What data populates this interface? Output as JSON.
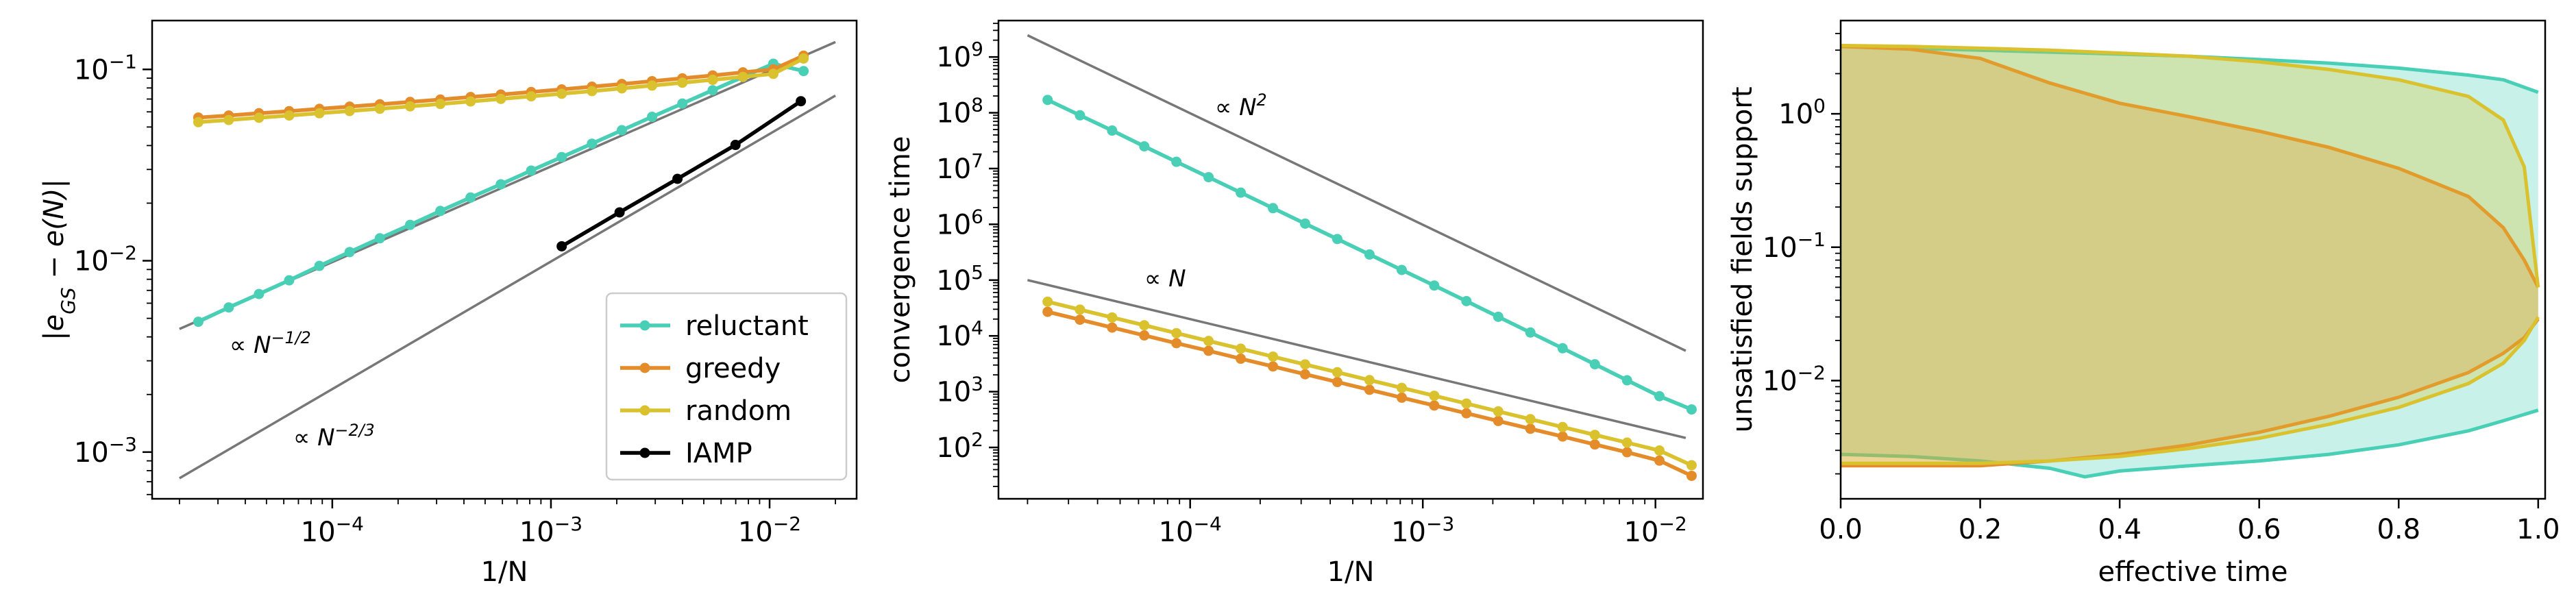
{
  "colors": {
    "reluctant": "#48cfb6",
    "greedy": "#e48c2a",
    "random": "#d9c22e",
    "iamp": "#000000",
    "ref": "#777777"
  },
  "chart_data": [
    {
      "type": "line",
      "xscale": "log",
      "yscale": "log",
      "xlabel": "1/N",
      "ylabel": "|e_GS − e(N)|",
      "xlim": [
        1.5e-05,
        0.025
      ],
      "ylim": [
        0.00057,
        0.18
      ],
      "xticks": [
        {
          "v": 0.0001,
          "b": "10",
          "e": "−4"
        },
        {
          "v": 0.001,
          "b": "10",
          "e": "−3"
        },
        {
          "v": 0.01,
          "b": "10",
          "e": "−2"
        }
      ],
      "yticks": [
        {
          "v": 0.001,
          "b": "10",
          "e": "−3"
        },
        {
          "v": 0.01,
          "b": "10",
          "e": "−2"
        },
        {
          "v": 0.1,
          "b": "10",
          "e": "−1"
        }
      ],
      "legend": {
        "placement": "lower right",
        "entries": [
          "reluctant",
          "greedy",
          "random",
          "IAMP"
        ]
      },
      "series": [
        {
          "name": "reluctant",
          "color_key": "reluctant",
          "x": [
            2.44e-05,
            3.36e-05,
            4.62e-05,
            6.35e-05,
            8.73e-05,
            0.00012,
            0.000165,
            0.000227,
            0.000312,
            0.000429,
            0.00059,
            0.000812,
            0.00112,
            0.00154,
            0.00211,
            0.0029,
            0.00399,
            0.00549,
            0.00755,
            0.0104,
            0.0143
          ],
          "y": [
            0.0048,
            0.0057,
            0.0067,
            0.0079,
            0.0094,
            0.0111,
            0.0131,
            0.0154,
            0.0182,
            0.0214,
            0.0251,
            0.0296,
            0.0348,
            0.0409,
            0.0481,
            0.0565,
            0.0663,
            0.0778,
            0.0913,
            0.1071,
            0.098
          ]
        },
        {
          "name": "greedy",
          "color_key": "greedy",
          "x": [
            2.44e-05,
            3.36e-05,
            4.62e-05,
            6.35e-05,
            8.73e-05,
            0.00012,
            0.000165,
            0.000227,
            0.000312,
            0.000429,
            0.00059,
            0.000812,
            0.00112,
            0.00154,
            0.00211,
            0.0029,
            0.00399,
            0.00549,
            0.00755,
            0.0104,
            0.0143
          ],
          "y": [
            0.056,
            0.0574,
            0.059,
            0.0605,
            0.0622,
            0.0639,
            0.0657,
            0.0676,
            0.0696,
            0.0717,
            0.0739,
            0.0762,
            0.0786,
            0.0812,
            0.0839,
            0.0868,
            0.0898,
            0.093,
            0.0965,
            0.1001,
            0.118
          ]
        },
        {
          "name": "random",
          "color_key": "random",
          "x": [
            2.44e-05,
            3.36e-05,
            4.62e-05,
            6.35e-05,
            8.73e-05,
            0.00012,
            0.000165,
            0.000227,
            0.000312,
            0.000429,
            0.00059,
            0.000812,
            0.00112,
            0.00154,
            0.00211,
            0.0029,
            0.00399,
            0.00549,
            0.00755,
            0.0104,
            0.0143
          ],
          "y": [
            0.053,
            0.0544,
            0.0559,
            0.0574,
            0.059,
            0.0606,
            0.0623,
            0.0641,
            0.066,
            0.068,
            0.0701,
            0.0723,
            0.0746,
            0.077,
            0.0796,
            0.0823,
            0.0852,
            0.0882,
            0.0914,
            0.0948,
            0.114
          ]
        },
        {
          "name": "IAMP",
          "color_key": "iamp",
          "x": [
            0.00112,
            0.00206,
            0.00379,
            0.00698,
            0.0139
          ],
          "y": [
            0.0119,
            0.0179,
            0.0268,
            0.0403,
            0.0682
          ]
        }
      ],
      "reference_lines": [
        {
          "label_base": "∝ N",
          "label_exp": "−1/2",
          "x": [
            2e-05,
            0.02
          ],
          "y": [
            0.0044,
            0.139
          ]
        },
        {
          "label_base": "∝ N",
          "label_exp": "−2/3",
          "x": [
            2e-05,
            0.02
          ],
          "y": [
            0.00073,
            0.073
          ]
        }
      ]
    },
    {
      "type": "line",
      "xscale": "log",
      "yscale": "log",
      "xlabel": "1/N",
      "ylabel": "convergence time",
      "xlim": [
        1.5e-05,
        0.016
      ],
      "ylim": [
        12,
        4500000000
      ],
      "xticks": [
        {
          "v": 0.0001,
          "b": "10",
          "e": "−4"
        },
        {
          "v": 0.001,
          "b": "10",
          "e": "−3"
        },
        {
          "v": 0.01,
          "b": "10",
          "e": "−2"
        }
      ],
      "yticks": [
        {
          "v": 100,
          "b": "10",
          "e": "2"
        },
        {
          "v": 1000,
          "b": "10",
          "e": "3"
        },
        {
          "v": 10000,
          "b": "10",
          "e": "4"
        },
        {
          "v": 100000,
          "b": "10",
          "e": "5"
        },
        {
          "v": 1000000,
          "b": "10",
          "e": "6"
        },
        {
          "v": 10000000,
          "b": "10",
          "e": "7"
        },
        {
          "v": 100000000,
          "b": "10",
          "e": "8"
        },
        {
          "v": 1000000000,
          "b": "10",
          "e": "9"
        }
      ],
      "series": [
        {
          "name": "reluctant",
          "color_key": "reluctant",
          "x": [
            2.44e-05,
            3.36e-05,
            4.62e-05,
            6.35e-05,
            8.73e-05,
            0.00012,
            0.000165,
            0.000227,
            0.000312,
            0.000429,
            0.00059,
            0.000812,
            0.00112,
            0.00154,
            0.00211,
            0.0029,
            0.00399,
            0.00549,
            0.00755,
            0.0104,
            0.0143
          ],
          "y": [
            170000000,
            90000000,
            48000000,
            25000000,
            13200000,
            7000000,
            3700000,
            1950000,
            1030000,
            545000,
            288000,
            152000,
            80000,
            42000,
            22000,
            11500,
            6000,
            3100,
            1600,
            830,
            480
          ]
        },
        {
          "name": "greedy",
          "color_key": "greedy",
          "x": [
            2.44e-05,
            3.36e-05,
            4.62e-05,
            6.35e-05,
            8.73e-05,
            0.00012,
            0.000165,
            0.000227,
            0.000312,
            0.000429,
            0.00059,
            0.000812,
            0.00112,
            0.00154,
            0.00211,
            0.0029,
            0.00399,
            0.00549,
            0.00755,
            0.0104,
            0.0143
          ],
          "y": [
            27000,
            19500,
            14100,
            10200,
            7400,
            5400,
            3900,
            2830,
            2050,
            1490,
            1080,
            780,
            565,
            410,
            298,
            216,
            157,
            113,
            82,
            58,
            31
          ]
        },
        {
          "name": "random",
          "color_key": "random",
          "x": [
            2.44e-05,
            3.36e-05,
            4.62e-05,
            6.35e-05,
            8.73e-05,
            0.00012,
            0.000165,
            0.000227,
            0.000312,
            0.000429,
            0.00059,
            0.000812,
            0.00112,
            0.00154,
            0.00211,
            0.0029,
            0.00399,
            0.00549,
            0.00755,
            0.0104,
            0.0143
          ],
          "y": [
            41000,
            29600,
            21400,
            15500,
            11200,
            8100,
            5900,
            4250,
            3080,
            2230,
            1610,
            1170,
            845,
            612,
            443,
            321,
            232,
            168,
            122,
            88,
            48
          ]
        }
      ],
      "reference_lines": [
        {
          "label_base": "∝ N",
          "label_exp": "2",
          "x": [
            2e-05,
            0.0135
          ],
          "y": [
            2450000000,
            5400
          ]
        },
        {
          "label_base": "∝ N",
          "label_exp": "",
          "x": [
            2e-05,
            0.0135
          ],
          "y": [
            100000,
            148
          ]
        }
      ]
    },
    {
      "type": "area",
      "xscale": "linear",
      "yscale": "log",
      "xlabel": "effective time",
      "ylabel": "unsatisfied fields support",
      "xlim": [
        0,
        1.01
      ],
      "ylim": [
        0.0013,
        5.0
      ],
      "xticks": [
        {
          "v": 0,
          "t": "0.0"
        },
        {
          "v": 0.2,
          "t": "0.2"
        },
        {
          "v": 0.4,
          "t": "0.4"
        },
        {
          "v": 0.6,
          "t": "0.6"
        },
        {
          "v": 0.8,
          "t": "0.8"
        },
        {
          "v": 1.0,
          "t": "1.0"
        }
      ],
      "yticks": [
        {
          "v": 0.01,
          "b": "10",
          "e": "−2"
        },
        {
          "v": 0.1,
          "b": "10",
          "e": "−1"
        },
        {
          "v": 1,
          "b": "10",
          "e": "0"
        }
      ],
      "series": [
        {
          "name": "reluctant",
          "color_key": "reluctant",
          "x": [
            0.0,
            0.1,
            0.2,
            0.3,
            0.35,
            0.4,
            0.5,
            0.6,
            0.7,
            0.8,
            0.9,
            0.95,
            1.0
          ],
          "upper": [
            3.2,
            3.1,
            3.0,
            2.9,
            2.85,
            2.8,
            2.7,
            2.55,
            2.4,
            2.2,
            1.95,
            1.8,
            1.45
          ],
          "lower": [
            0.0028,
            0.0027,
            0.0025,
            0.0022,
            0.0019,
            0.0021,
            0.0023,
            0.0025,
            0.0028,
            0.0033,
            0.0042,
            0.005,
            0.006
          ]
        },
        {
          "name": "greedy",
          "color_key": "greedy",
          "x": [
            0.0,
            0.1,
            0.2,
            0.25,
            0.3,
            0.4,
            0.5,
            0.6,
            0.7,
            0.8,
            0.9,
            0.95,
            0.98,
            1.0
          ],
          "upper": [
            3.2,
            3.05,
            2.6,
            2.1,
            1.7,
            1.2,
            0.95,
            0.74,
            0.56,
            0.39,
            0.24,
            0.14,
            0.08,
            0.05
          ],
          "lower": [
            0.0023,
            0.0023,
            0.0023,
            0.0024,
            0.0025,
            0.0028,
            0.0033,
            0.0041,
            0.0054,
            0.0075,
            0.0115,
            0.016,
            0.021,
            0.029
          ]
        },
        {
          "name": "random",
          "color_key": "random",
          "x": [
            0.0,
            0.1,
            0.2,
            0.3,
            0.4,
            0.5,
            0.6,
            0.7,
            0.8,
            0.9,
            0.95,
            0.98,
            1.0
          ],
          "upper": [
            3.25,
            3.2,
            3.1,
            3.0,
            2.85,
            2.7,
            2.45,
            2.15,
            1.8,
            1.35,
            0.9,
            0.4,
            0.05
          ],
          "lower": [
            0.0024,
            0.0024,
            0.0024,
            0.0025,
            0.0027,
            0.0031,
            0.0037,
            0.0047,
            0.0063,
            0.0095,
            0.0135,
            0.02,
            0.03
          ]
        }
      ]
    }
  ]
}
